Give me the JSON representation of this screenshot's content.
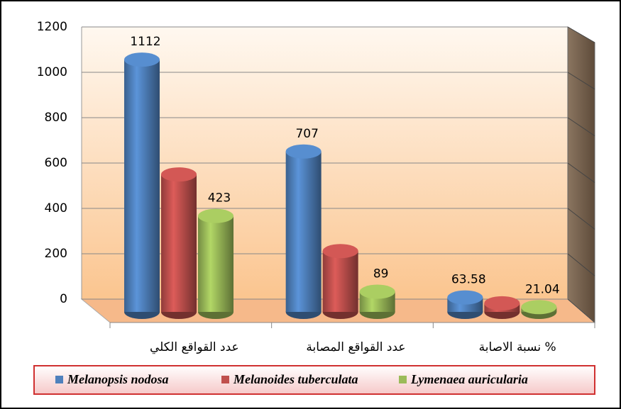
{
  "chart_data": {
    "type": "bar3d",
    "categories": [
      "عدد القواقع الكلي",
      "عدد القواقع المصابة",
      "نسبة الاصابة %"
    ],
    "series": [
      {
        "name": "Melanopsis nodosa",
        "color": "#4f81bd",
        "values": [
          1112,
          707,
          63.58
        ],
        "data_labels": true
      },
      {
        "name": "Melanoides tuberculata",
        "color": "#c0504d",
        "values": [
          606,
          268,
          38
        ],
        "data_labels": false
      },
      {
        "name": "Lymenaea auricularia",
        "color": "#9bbb59",
        "values": [
          423,
          89,
          21.04
        ],
        "data_labels": true
      }
    ],
    "ylim": [
      0,
      1200
    ],
    "yticks": [
      0,
      200,
      400,
      600,
      800,
      1000,
      1200
    ],
    "grid": true,
    "legend": "bottom"
  }
}
